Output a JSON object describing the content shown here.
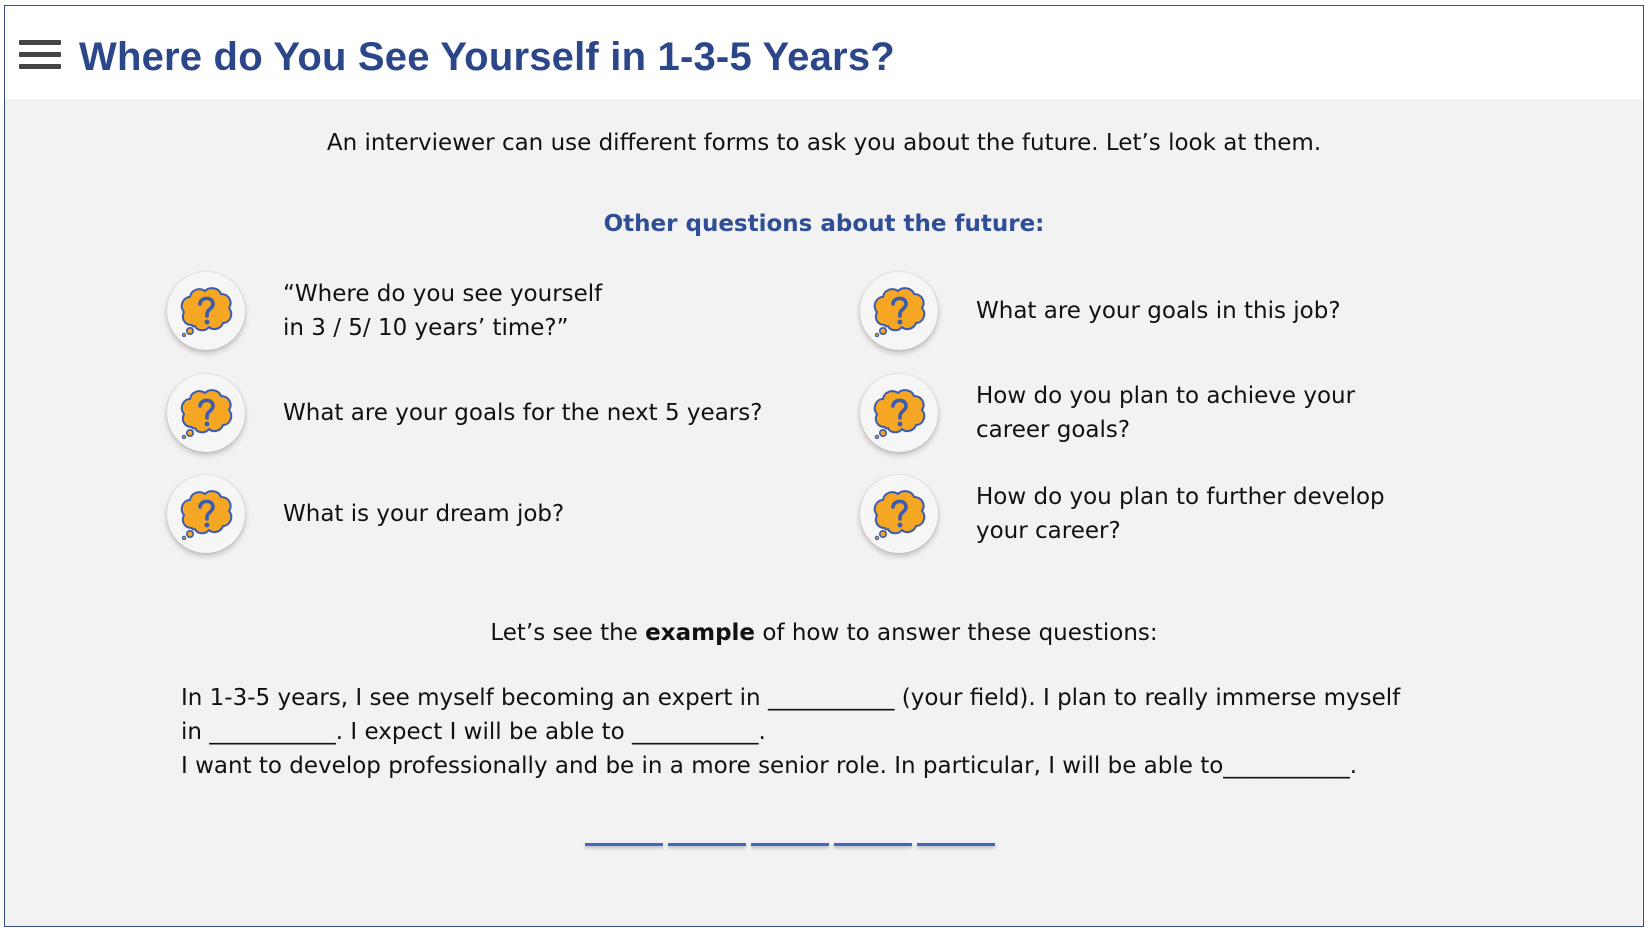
{
  "header": {
    "title": "Where do You See Yourself in 1-3-5 Years?",
    "menu_icon": "hamburger-menu-icon"
  },
  "intro": "An interviewer can use different forms to ask you about the future. Let’s look at them.",
  "section_title": "Other questions about the future:",
  "questions": [
    {
      "text": "“Where do you see yourself\nin 3 / 5/ 10 years’ time?”",
      "icon": "question-bubble-icon"
    },
    {
      "text": "What are your goals for the next 5 years?",
      "icon": "question-bubble-icon"
    },
    {
      "text": "What is your dream job?",
      "icon": "question-bubble-icon"
    },
    {
      "text": "What are your goals in this job?",
      "icon": "question-bubble-icon"
    },
    {
      "text": "How do you plan to achieve your\ncareer goals?",
      "icon": "question-bubble-icon"
    },
    {
      "text": "How do you plan to further develop\nyour career?",
      "icon": "question-bubble-icon"
    }
  ],
  "example_intro": {
    "before": "Let’s see the ",
    "bold": "example",
    "after": " of how to answer these questions:"
  },
  "example_lines": [
    "In 1-3-5 years, I see myself becoming an expert in ___________ (your field). I plan to really immerse myself in ___________. I expect I will be able to ___________.",
    "I want to develop professionally and be in a more senior role. In particular, I will be able to___________."
  ],
  "colors": {
    "title": "#2b4689",
    "section_title": "#2f4e96",
    "icon_fill": "#f5a623",
    "icon_stroke": "#3a5bb0",
    "progress": "#3f68c4",
    "content_bg": "#f2f2f2"
  },
  "progress": {
    "segments": 5
  }
}
